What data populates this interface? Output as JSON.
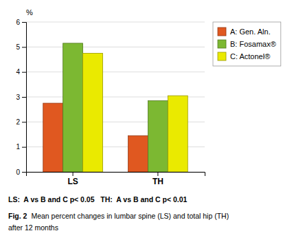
{
  "chart_data": {
    "type": "bar",
    "categories": [
      "LS",
      "TH"
    ],
    "series": [
      {
        "name": "A: Gen. Aln.",
        "color": "#E05820",
        "values": [
          2.75,
          1.45
        ]
      },
      {
        "name": "B: Fosamax®",
        "color": "#7CB832",
        "values": [
          5.15,
          2.85
        ]
      },
      {
        "name": "C: Actonel®",
        "color": "#EAEA00",
        "values": [
          4.75,
          3.05
        ]
      }
    ],
    "y_label": "%",
    "ylim": [
      0,
      6
    ],
    "yticks": [
      0,
      1,
      2,
      3,
      4,
      5,
      6
    ],
    "grid": true,
    "legend": "right",
    "annotations": [
      "LS:  A vs B and C p< 0.05   TH:  A vs B and C p< 0.01",
      "Fig. 2",
      "Mean percent changes in lumbar spine (LS) and total hip (TH)",
      "after 12 months"
    ]
  }
}
